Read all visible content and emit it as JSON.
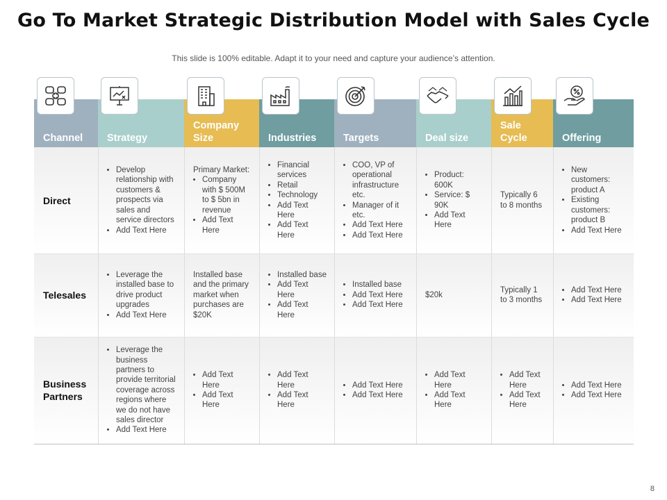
{
  "title": "Go To Market Strategic Distribution Model with Sales Cycle",
  "subtitle": "This slide is 100% editable. Adapt it to your need and capture your audience’s attention.",
  "page_number": "8",
  "columns": [
    {
      "label": "Channel",
      "icon": null,
      "color": "#9fb0bf"
    },
    {
      "label": "Strategy",
      "icon": "presentation-board-icon",
      "color": "#a9cfcc"
    },
    {
      "label": "Company Size",
      "icon": "office-building-icon",
      "color": "#e6bc53"
    },
    {
      "label": "Industries",
      "icon": "factory-icon",
      "color": "#6f9da0"
    },
    {
      "label": "Targets",
      "icon": "target-icon",
      "color": "#9fb0bf"
    },
    {
      "label": "Deal size",
      "icon": "handshake-icon",
      "color": "#a9cfcc"
    },
    {
      "label": "Sale Cycle",
      "icon": "bar-chart-icon",
      "color": "#e6bc53"
    },
    {
      "label": "Offering",
      "icon": "percent-hand-icon",
      "color": "#6f9da0"
    }
  ],
  "channel_icon": "org-chart-icon",
  "rows": [
    {
      "label": "Direct",
      "cells": [
        {
          "bullets": [
            "Develop relationship with customers & prospects via sales and service directors",
            "Add Text Here"
          ]
        },
        {
          "text": "Primary Market:",
          "bullets": [
            "Company with $ 500M to $ 5bn in revenue",
            "Add Text Here"
          ]
        },
        {
          "bullets": [
            "Financial services",
            "Retail",
            "Technology",
            "Add Text Here",
            "Add Text Here"
          ]
        },
        {
          "bullets": [
            "COO, VP of operational infrastructure etc.",
            "Manager of it etc.",
            "Add Text Here",
            "Add Text Here"
          ]
        },
        {
          "bullets": [
            "Product: 600K",
            "Service: $ 90K",
            "Add Text Here"
          ]
        },
        {
          "text": "Typically 6 to 8 months"
        },
        {
          "bullets": [
            "New customers: product A",
            "Existing customers: product B",
            "Add Text Here"
          ]
        }
      ]
    },
    {
      "label": "Telesales",
      "cells": [
        {
          "bullets": [
            "Leverage the installed base to drive product upgrades",
            "Add Text Here"
          ]
        },
        {
          "text": "Installed base and the primary market when purchases are $20K"
        },
        {
          "bullets": [
            "Installed base",
            "Add Text Here",
            "Add Text Here"
          ]
        },
        {
          "bullets": [
            "Installed base",
            "Add Text Here",
            "Add Text Here"
          ]
        },
        {
          "text": "$20k"
        },
        {
          "text": "Typically 1 to 3 months"
        },
        {
          "bullets": [
            "Add Text Here",
            "Add Text Here"
          ]
        }
      ]
    },
    {
      "label": "Business Partners",
      "cells": [
        {
          "bullets": [
            "Leverage the business partners to provide territorial coverage across regions where we do not have sales director",
            "Add Text Here"
          ]
        },
        {
          "bullets": [
            "Add Text Here",
            "Add Text Here"
          ]
        },
        {
          "bullets": [
            "Add Text Here",
            "Add Text Here"
          ]
        },
        {
          "bullets": [
            "Add Text Here",
            "Add Text Here"
          ]
        },
        {
          "bullets": [
            "Add Text Here",
            "Add Text Here"
          ]
        },
        {
          "bullets": [
            "Add Text Here",
            "Add Text Here"
          ]
        },
        {
          "bullets": [
            "Add Text Here",
            "Add Text Here"
          ]
        }
      ]
    }
  ]
}
